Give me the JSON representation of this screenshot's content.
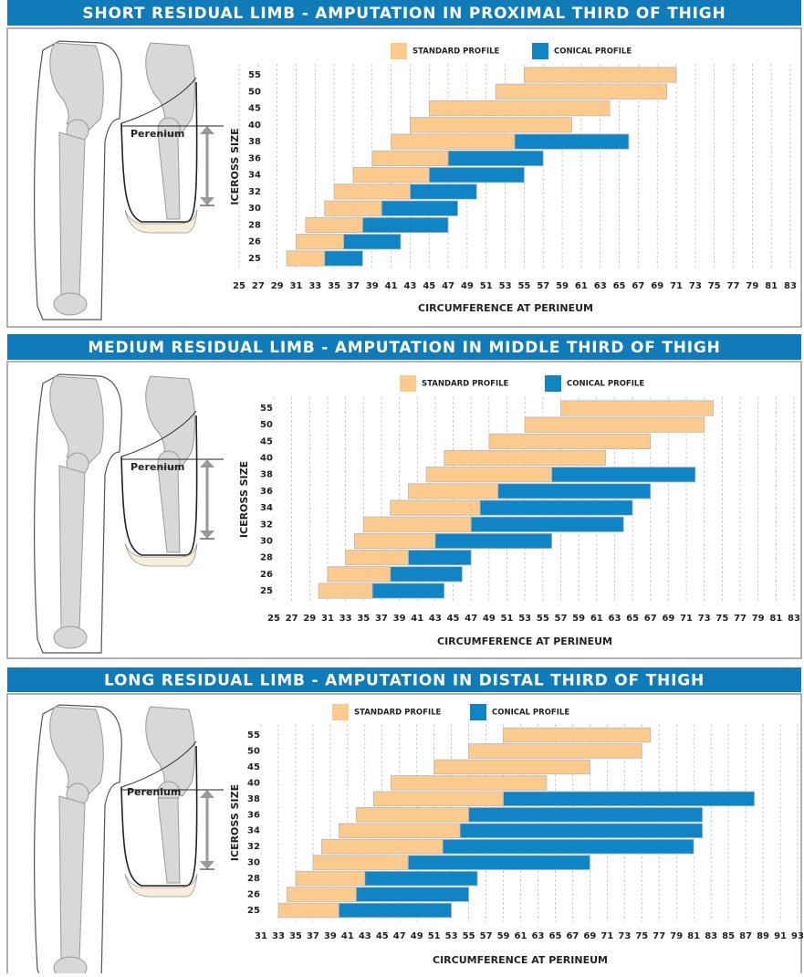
{
  "chart_data": [
    {
      "type": "range-bar",
      "title": "SHORT RESIDUAL LIMB - AMPUTATION IN PROXIMAL THIRD OF THIGH",
      "diagram_label": "Perenium",
      "ylabel": "ICEROSS SIZE",
      "xlabel": "CIRCUMFERENCE AT PERINEUM",
      "categories": [
        "25",
        "26",
        "28",
        "30",
        "32",
        "34",
        "36",
        "38",
        "40",
        "45",
        "50",
        "55"
      ],
      "series": [
        {
          "name": "STANDARD PROFILE",
          "color": "#fbca8c",
          "values": [
            [
              30,
              34
            ],
            [
              31,
              36
            ],
            [
              32,
              38
            ],
            [
              34,
              40
            ],
            [
              35,
              43
            ],
            [
              37,
              45
            ],
            [
              39,
              47
            ],
            [
              41,
              54
            ],
            [
              43,
              60
            ],
            [
              45,
              64
            ],
            [
              52,
              70
            ],
            [
              55,
              71
            ]
          ]
        },
        {
          "name": "CONICAL PROFILE",
          "color": "#0f85c6",
          "values": [
            [
              34,
              38
            ],
            [
              36,
              42
            ],
            [
              38,
              47
            ],
            [
              40,
              48
            ],
            [
              43,
              50
            ],
            [
              45,
              55
            ],
            [
              47,
              57
            ],
            [
              54,
              66
            ],
            null,
            null,
            null,
            null
          ]
        }
      ],
      "xlim": [
        25,
        83
      ],
      "xticks": [
        25,
        27,
        29,
        31,
        33,
        35,
        37,
        39,
        41,
        43,
        45,
        47,
        49,
        51,
        53,
        55,
        57,
        59,
        61,
        63,
        65,
        67,
        69,
        71,
        73,
        75,
        77,
        79,
        81,
        83
      ],
      "grid": true
    },
    {
      "type": "range-bar",
      "title": "MEDIUM RESIDUAL LIMB - AMPUTATION IN MIDDLE THIRD OF THIGH",
      "diagram_label": "Perenium",
      "ylabel": "ICEROSS SIZE",
      "xlabel": "CIRCUMFERENCE AT PERINEUM",
      "categories": [
        "25",
        "26",
        "28",
        "30",
        "32",
        "34",
        "36",
        "38",
        "40",
        "45",
        "50",
        "55"
      ],
      "series": [
        {
          "name": "STANDARD PROFILE",
          "color": "#fbca8c",
          "values": [
            [
              30,
              36
            ],
            [
              31,
              38
            ],
            [
              33,
              40
            ],
            [
              34,
              43
            ],
            [
              35,
              47
            ],
            [
              38,
              48
            ],
            [
              40,
              50
            ],
            [
              42,
              56
            ],
            [
              44,
              62
            ],
            [
              49,
              67
            ],
            [
              53,
              73
            ],
            [
              57,
              74
            ]
          ]
        },
        {
          "name": "CONICAL PROFILE",
          "color": "#0f85c6",
          "values": [
            [
              36,
              44
            ],
            [
              38,
              46
            ],
            [
              40,
              47
            ],
            [
              43,
              56
            ],
            [
              47,
              64
            ],
            [
              48,
              65
            ],
            [
              50,
              67
            ],
            [
              56,
              72
            ],
            null,
            null,
            null,
            null
          ]
        }
      ],
      "xlim": [
        25,
        83
      ],
      "xticks": [
        25,
        27,
        29,
        31,
        33,
        35,
        37,
        39,
        41,
        43,
        45,
        47,
        49,
        51,
        53,
        55,
        57,
        59,
        61,
        63,
        65,
        67,
        69,
        71,
        73,
        75,
        77,
        79,
        81,
        83
      ],
      "grid": true
    },
    {
      "type": "range-bar",
      "title": "LONG RESIDUAL LIMB - AMPUTATION IN DISTAL THIRD OF THIGH",
      "diagram_label": "Perenium",
      "ylabel": "ICEROSS SIZE",
      "xlabel": "CIRCUMFERENCE AT PERINEUM",
      "categories": [
        "25",
        "26",
        "28",
        "30",
        "32",
        "34",
        "36",
        "38",
        "40",
        "45",
        "50",
        "55"
      ],
      "series": [
        {
          "name": "STANDARD PROFILE",
          "color": "#fbca8c",
          "values": [
            [
              33,
              40
            ],
            [
              34,
              42
            ],
            [
              35,
              43
            ],
            [
              37,
              48
            ],
            [
              38,
              52
            ],
            [
              40,
              54
            ],
            [
              42,
              55
            ],
            [
              44,
              59
            ],
            [
              46,
              64
            ],
            [
              51,
              69
            ],
            [
              55,
              75
            ],
            [
              59,
              76
            ]
          ]
        },
        {
          "name": "CONICAL PROFILE",
          "color": "#0f85c6",
          "values": [
            [
              40,
              53
            ],
            [
              42,
              55
            ],
            [
              43,
              56
            ],
            [
              48,
              69
            ],
            [
              52,
              81
            ],
            [
              54,
              82
            ],
            [
              55,
              82
            ],
            [
              59,
              88
            ],
            null,
            null,
            null,
            null
          ]
        }
      ],
      "xlim": [
        31,
        93
      ],
      "xticks": [
        31,
        33,
        35,
        37,
        39,
        41,
        43,
        45,
        47,
        49,
        51,
        53,
        55,
        57,
        59,
        61,
        63,
        65,
        67,
        69,
        71,
        73,
        75,
        77,
        79,
        81,
        83,
        85,
        87,
        89,
        91,
        93
      ],
      "grid": true
    }
  ]
}
